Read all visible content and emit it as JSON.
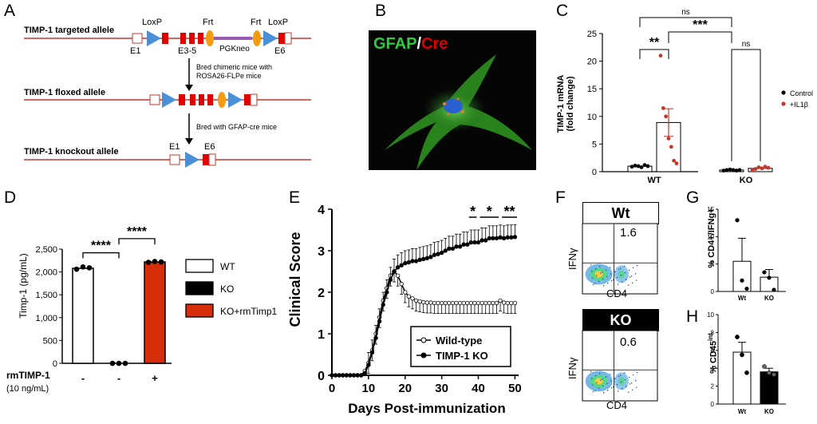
{
  "panels": {
    "a": "A",
    "b": "B",
    "c": "C",
    "d": "D",
    "e": "E",
    "f": "F",
    "g": "G",
    "h": "H"
  },
  "panel_a": {
    "targeted_label": "TIMP-1 targeted allele",
    "floxed_label": "TIMP-1 floxed allele",
    "knockout_label": "TIMP-1 knockout allele",
    "loxp": "LoxP",
    "frt": "Frt",
    "pgkneo": "PGKneo",
    "e1": "E1",
    "e35": "E3-5",
    "e6": "E6",
    "step1_line1": "Bred chimeric mice with",
    "step1_line2": "ROSA26-FLPe mice",
    "step2": "Bred with GFAP-cre mice"
  },
  "panel_b": {
    "gfap": "GFAP",
    "slash": "/",
    "cre": "Cre"
  },
  "panel_c": {
    "ylabel_line1": "TIMP-1 mRNA",
    "ylabel_line2": "(fold change)",
    "yticks": [
      "0",
      "5",
      "10",
      "15",
      "20",
      "25"
    ],
    "groups": [
      "WT",
      "KO"
    ],
    "legend": [
      {
        "label": "Control",
        "color": "#000000"
      },
      {
        "label": "+IL1β",
        "color": "#c0392b"
      }
    ],
    "sig": {
      "top": "ns",
      "wt": "**",
      "cross": "***",
      "ko": "ns"
    }
  },
  "panel_d": {
    "ylabel": "Timp-1 (pg/mL)",
    "yticks": [
      "0",
      "500",
      "1,000",
      "1,500",
      "2,000",
      "2,500"
    ],
    "treatment_label": "rmTIMP-1",
    "treatment_conc": "(10 ng/mL)",
    "treatment_signs": [
      "-",
      "-",
      "+"
    ],
    "sig": "****",
    "legend": [
      {
        "label": "WT",
        "color": "#ffffff"
      },
      {
        "label": "KO",
        "color": "#000000"
      },
      {
        "label": "KO+rmTimp1",
        "color": "#d62d0a"
      }
    ]
  },
  "panel_e": {
    "ylabel": "Clinical Score",
    "xlabel": "Days Post-immunization",
    "yticks": [
      "0",
      "1",
      "2",
      "3",
      "4"
    ],
    "xticks": [
      "0",
      "10",
      "20",
      "30",
      "40",
      "50"
    ],
    "legend": [
      "Wild-type",
      "TIMP-1 KO"
    ],
    "sig": [
      "*",
      "*",
      "**"
    ]
  },
  "panel_f": {
    "wt_title": "Wt",
    "ko_title": "KO",
    "ylabel": "IFNγ",
    "xlabel": "CD4",
    "wt_value": "1.6",
    "ko_value": "0.6"
  },
  "panel_g": {
    "ylabel": "% CD4+/IFNg+",
    "yticks": [
      "0",
      "5",
      "10",
      "15"
    ],
    "groups": [
      "Wt",
      "KO"
    ]
  },
  "panel_h": {
    "ylabel": "% CD45",
    "ylabel_sup": "int",
    "yticks": [
      "0",
      "2",
      "4",
      "6",
      "8",
      "10"
    ],
    "groups": [
      "Wt",
      "KO"
    ]
  },
  "chart_data": [
    {
      "type": "bar",
      "panel": "C",
      "categories": [
        "WT",
        "KO"
      ],
      "series": [
        {
          "name": "Control",
          "values": [
            1.0,
            0.3
          ],
          "points": [
            [
              0.9,
              1.1,
              1.0,
              0.8,
              1.2,
              1.0
            ],
            [
              0.2,
              0.3,
              0.4,
              0.3,
              0.2,
              0.3
            ]
          ]
        },
        {
          "name": "+IL1β",
          "values": [
            8.9,
            0.6
          ],
          "points": [
            [
              21,
              11.5,
              10,
              6,
              4.5,
              2,
              1.5
            ],
            [
              0.3,
              0.5,
              0.8,
              0.6,
              0.9,
              0.7
            ]
          ]
        }
      ],
      "ylim": [
        0,
        25
      ]
    },
    {
      "type": "bar",
      "panel": "D",
      "categories": [
        "WT",
        "KO",
        "KO+rmTimp1"
      ],
      "values": [
        2080,
        0,
        2220
      ],
      "points": [
        [
          2060,
          2110,
          2090
        ],
        [
          0,
          0,
          0
        ],
        [
          2210,
          2230,
          2220
        ]
      ],
      "ylim": [
        0,
        2500
      ]
    },
    {
      "type": "line",
      "panel": "E",
      "xlim": [
        0,
        51
      ],
      "ylim": [
        0,
        4
      ],
      "series": [
        {
          "name": "Wild-type",
          "x": [
            0,
            1,
            2,
            3,
            4,
            5,
            6,
            7,
            8,
            9,
            10,
            11,
            12,
            13,
            14,
            15,
            16,
            17,
            18,
            19,
            20,
            21,
            22,
            23,
            24,
            25,
            26,
            27,
            28,
            29,
            30,
            31,
            32,
            33,
            34,
            35,
            36,
            37,
            38,
            39,
            40,
            41,
            42,
            43,
            44,
            45,
            46,
            47,
            48,
            49,
            50
          ],
          "y": [
            0,
            0,
            0,
            0,
            0,
            0,
            0,
            0,
            0,
            0.1,
            0.3,
            0.6,
            1.0,
            1.4,
            1.8,
            2.1,
            2.4,
            2.5,
            2.4,
            2.2,
            2.0,
            1.9,
            1.85,
            1.8,
            1.78,
            1.76,
            1.75,
            1.75,
            1.74,
            1.74,
            1.74,
            1.74,
            1.74,
            1.74,
            1.74,
            1.74,
            1.74,
            1.74,
            1.74,
            1.74,
            1.74,
            1.74,
            1.74,
            1.74,
            1.74,
            1.74,
            1.8,
            1.75,
            1.74,
            1.74,
            1.74
          ]
        },
        {
          "name": "TIMP-1 KO",
          "x": [
            0,
            1,
            2,
            3,
            4,
            5,
            6,
            7,
            8,
            9,
            10,
            11,
            12,
            13,
            14,
            15,
            16,
            17,
            18,
            19,
            20,
            21,
            22,
            23,
            24,
            25,
            26,
            27,
            28,
            29,
            30,
            31,
            32,
            33,
            34,
            35,
            36,
            37,
            38,
            39,
            40,
            41,
            42,
            43,
            44,
            45,
            46,
            47,
            48,
            49,
            50
          ],
          "y": [
            0,
            0,
            0,
            0,
            0,
            0,
            0,
            0,
            0,
            0.05,
            0.25,
            0.55,
            0.9,
            1.3,
            1.7,
            2.0,
            2.3,
            2.5,
            2.6,
            2.65,
            2.7,
            2.72,
            2.75,
            2.75,
            2.78,
            2.8,
            2.82,
            2.85,
            2.9,
            2.92,
            2.95,
            3.0,
            3.05,
            3.05,
            3.1,
            3.1,
            3.15,
            3.15,
            3.2,
            3.2,
            3.2,
            3.25,
            3.25,
            3.3,
            3.3,
            3.3,
            3.32,
            3.3,
            3.32,
            3.32,
            3.33
          ]
        }
      ]
    },
    {
      "type": "bar",
      "panel": "G",
      "categories": [
        "Wt",
        "KO"
      ],
      "values": [
        5.5,
        2.6
      ],
      "points": [
        [
          13,
          2,
          0.5
        ],
        [
          3.5,
          2.5,
          0.3
        ]
      ],
      "ylim": [
        0,
        15
      ]
    },
    {
      "type": "bar",
      "panel": "H",
      "categories": [
        "Wt",
        "KO"
      ],
      "values": [
        5.8,
        3.6
      ],
      "points": [
        [
          7.5,
          5.5,
          3.5
        ],
        [
          4.2,
          3.5,
          3.3
        ]
      ],
      "ylim": [
        0,
        10
      ]
    }
  ]
}
